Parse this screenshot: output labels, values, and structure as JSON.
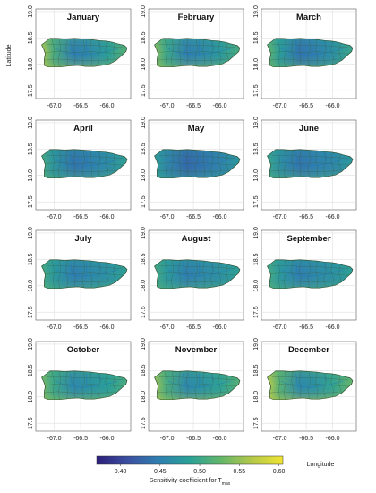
{
  "figure": {
    "ylabel": "Latitude",
    "xlabel": "Longitude",
    "colorbar_label": "Sensitivity coefficient for T",
    "colorbar_label_sub": "max",
    "colorbar_ticks": [
      "0.40",
      "0.45",
      "0.50",
      "0.55",
      "0.60"
    ],
    "colorbar_range": [
      0.37,
      0.605
    ],
    "colormap": [
      "#2c1f7a",
      "#3b4fa0",
      "#2f7fb0",
      "#2aa197",
      "#63b66a",
      "#b4c84a",
      "#f0e433"
    ],
    "x_ticks": [
      "-67.0",
      "-66.5",
      "-66.0"
    ],
    "y_ticks": [
      "17.5",
      "18.0",
      "18.5",
      "19.0"
    ]
  },
  "chart_data": {
    "type": "heatmap",
    "variable": "Sensitivity coefficient for Tmax",
    "xlim": [
      -67.35,
      -65.55
    ],
    "ylim": [
      17.35,
      19.05
    ],
    "panels": [
      {
        "month": "January",
        "west": 0.57,
        "center": 0.45,
        "east": 0.52,
        "north": 0.51,
        "south": 0.56
      },
      {
        "month": "February",
        "west": 0.55,
        "center": 0.45,
        "east": 0.51,
        "north": 0.5,
        "south": 0.55
      },
      {
        "month": "March",
        "west": 0.53,
        "center": 0.44,
        "east": 0.5,
        "north": 0.49,
        "south": 0.53
      },
      {
        "month": "April",
        "west": 0.51,
        "center": 0.44,
        "east": 0.49,
        "north": 0.48,
        "south": 0.52
      },
      {
        "month": "May",
        "west": 0.49,
        "center": 0.43,
        "east": 0.48,
        "north": 0.47,
        "south": 0.5
      },
      {
        "month": "June",
        "west": 0.5,
        "center": 0.44,
        "east": 0.48,
        "north": 0.48,
        "south": 0.52
      },
      {
        "month": "July",
        "west": 0.51,
        "center": 0.45,
        "east": 0.49,
        "north": 0.49,
        "south": 0.52
      },
      {
        "month": "August",
        "west": 0.51,
        "center": 0.45,
        "east": 0.49,
        "north": 0.49,
        "south": 0.52
      },
      {
        "month": "September",
        "west": 0.51,
        "center": 0.45,
        "east": 0.49,
        "north": 0.49,
        "south": 0.52
      },
      {
        "month": "October",
        "west": 0.54,
        "center": 0.46,
        "east": 0.51,
        "north": 0.51,
        "south": 0.55
      },
      {
        "month": "November",
        "west": 0.56,
        "center": 0.46,
        "east": 0.52,
        "north": 0.51,
        "south": 0.56
      },
      {
        "month": "December",
        "west": 0.58,
        "center": 0.46,
        "east": 0.53,
        "north": 0.52,
        "south": 0.57
      }
    ]
  }
}
